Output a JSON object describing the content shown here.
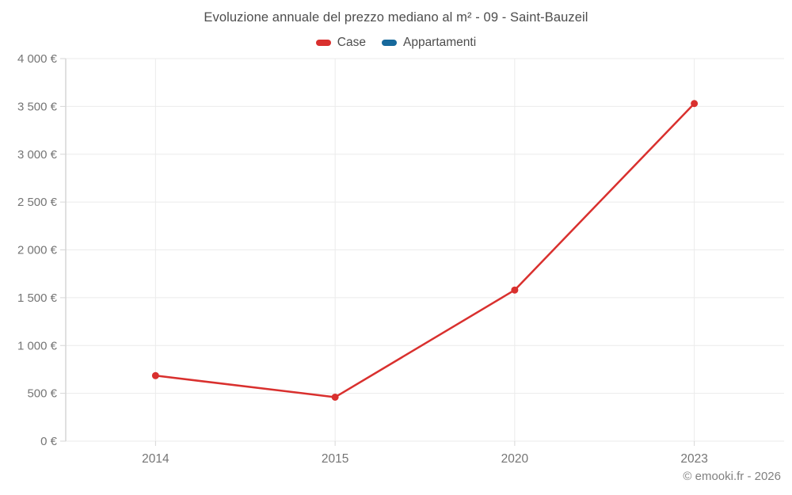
{
  "title": "Evoluzione annuale del prezzo mediano al m² - 09 - Saint-Bauzeil",
  "legend": [
    {
      "label": "Case",
      "color": "#d9302e"
    },
    {
      "label": "Appartamenti",
      "color": "#17699c"
    }
  ],
  "footer": "© emooki.fr - 2026",
  "colors": {
    "grid": "#ebebeb",
    "axis": "#d6d6d6",
    "tick_label": "#757575",
    "title_text": "#4d4d4d",
    "footer_text": "#808080"
  },
  "chart_data": {
    "type": "line",
    "x": [
      "2014",
      "2015",
      "2020",
      "2023"
    ],
    "series": [
      {
        "name": "Case",
        "color": "#d9302e",
        "values": [
          685,
          460,
          1580,
          3530
        ]
      },
      {
        "name": "Appartamenti",
        "color": "#17699c",
        "values": []
      }
    ],
    "title": "Evoluzione annuale del prezzo mediano al m² - 09 - Saint-Bauzeil",
    "xlabel": "",
    "ylabel": "",
    "ylim": [
      0,
      4000
    ],
    "ytick_step": 500,
    "ytick_labels": [
      "0 €",
      "500 €",
      "1 000 €",
      "1 500 €",
      "2 000 €",
      "2 500 €",
      "3 000 €",
      "3 500 €",
      "4 000 €"
    ],
    "grid": true,
    "legend_position": "top"
  }
}
